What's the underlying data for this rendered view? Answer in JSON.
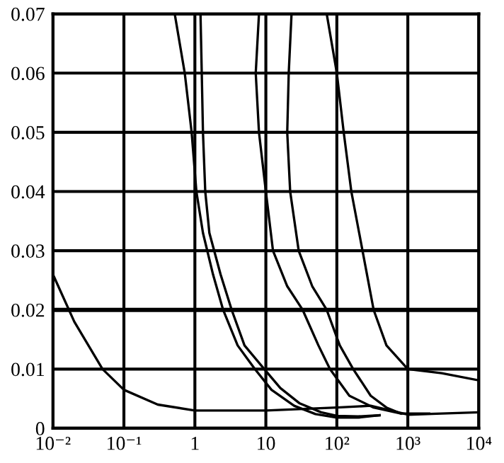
{
  "chart_data": {
    "type": "line",
    "log": "x",
    "grid": true,
    "legend": false,
    "marker": "none",
    "line_style": "solid",
    "xlim": [
      0.01,
      10000
    ],
    "ylim": [
      0,
      0.07
    ],
    "xticks": [
      {
        "value": 0.01,
        "label": "10⁻²"
      },
      {
        "value": 0.1,
        "label": "10⁻¹"
      },
      1,
      10,
      {
        "value": 100,
        "label": "10²"
      },
      {
        "value": 1000,
        "label": "10³"
      },
      {
        "value": 10000,
        "label": "10⁴"
      }
    ],
    "yticks": [
      0,
      0.01,
      0.02,
      0.03,
      0.04,
      0.05,
      0.06,
      0.07
    ],
    "ref_lines": [
      {
        "axis": "y",
        "value": 0.02,
        "color": "#000000"
      }
    ],
    "series": [
      {
        "color": "#000000",
        "x": [
          0.01,
          0.02,
          0.05,
          0.1,
          0.3,
          1,
          10,
          100,
          300,
          1000,
          3000,
          10000
        ],
        "values": [
          0.026,
          0.018,
          0.01,
          0.0065,
          0.004,
          0.003,
          0.003,
          0.0035,
          0.0038,
          0.0023,
          0.0025,
          0.0027
        ]
      },
      {
        "color": "#000000",
        "x": [
          0.52,
          0.72,
          0.9,
          1.05,
          1.3,
          1.8,
          2.5,
          4,
          7,
          12,
          25,
          50,
          100,
          200,
          400
        ],
        "values": [
          0.07,
          0.06,
          0.05,
          0.04,
          0.033,
          0.026,
          0.02,
          0.014,
          0.01,
          0.0065,
          0.0038,
          0.0024,
          0.0018,
          0.0018,
          0.0022
        ]
      },
      {
        "color": "#000000",
        "x": [
          1.2,
          1.25,
          1.3,
          1.4,
          1.6,
          2.3,
          3.3,
          5,
          9.5,
          16,
          30,
          60,
          100,
          200,
          400
        ],
        "values": [
          0.07,
          0.06,
          0.05,
          0.04,
          0.033,
          0.026,
          0.02,
          0.014,
          0.01,
          0.0068,
          0.0042,
          0.0027,
          0.0021,
          0.002,
          0.0022
        ]
      },
      {
        "color": "#000000",
        "x": [
          8,
          7.2,
          8,
          10,
          12.6,
          20,
          33,
          55,
          80,
          150,
          330,
          800,
          2000
        ],
        "values": [
          0.07,
          0.06,
          0.05,
          0.04,
          0.03,
          0.024,
          0.02,
          0.014,
          0.01,
          0.0055,
          0.0035,
          0.0025,
          0.0025
        ]
      },
      {
        "color": "#000000",
        "x": [
          23,
          21,
          20,
          22,
          29,
          45,
          72,
          110,
          170,
          300,
          500,
          800
        ],
        "values": [
          0.07,
          0.06,
          0.05,
          0.04,
          0.03,
          0.024,
          0.02,
          0.014,
          0.01,
          0.0055,
          0.0035,
          0.0025
        ]
      },
      {
        "color": "#000000",
        "x": [
          72,
          100,
          125,
          160,
          230,
          330,
          500,
          1000,
          3000,
          10000
        ],
        "values": [
          0.07,
          0.06,
          0.05,
          0.04,
          0.03,
          0.02,
          0.014,
          0.01,
          0.0093,
          0.0081
        ]
      }
    ]
  }
}
